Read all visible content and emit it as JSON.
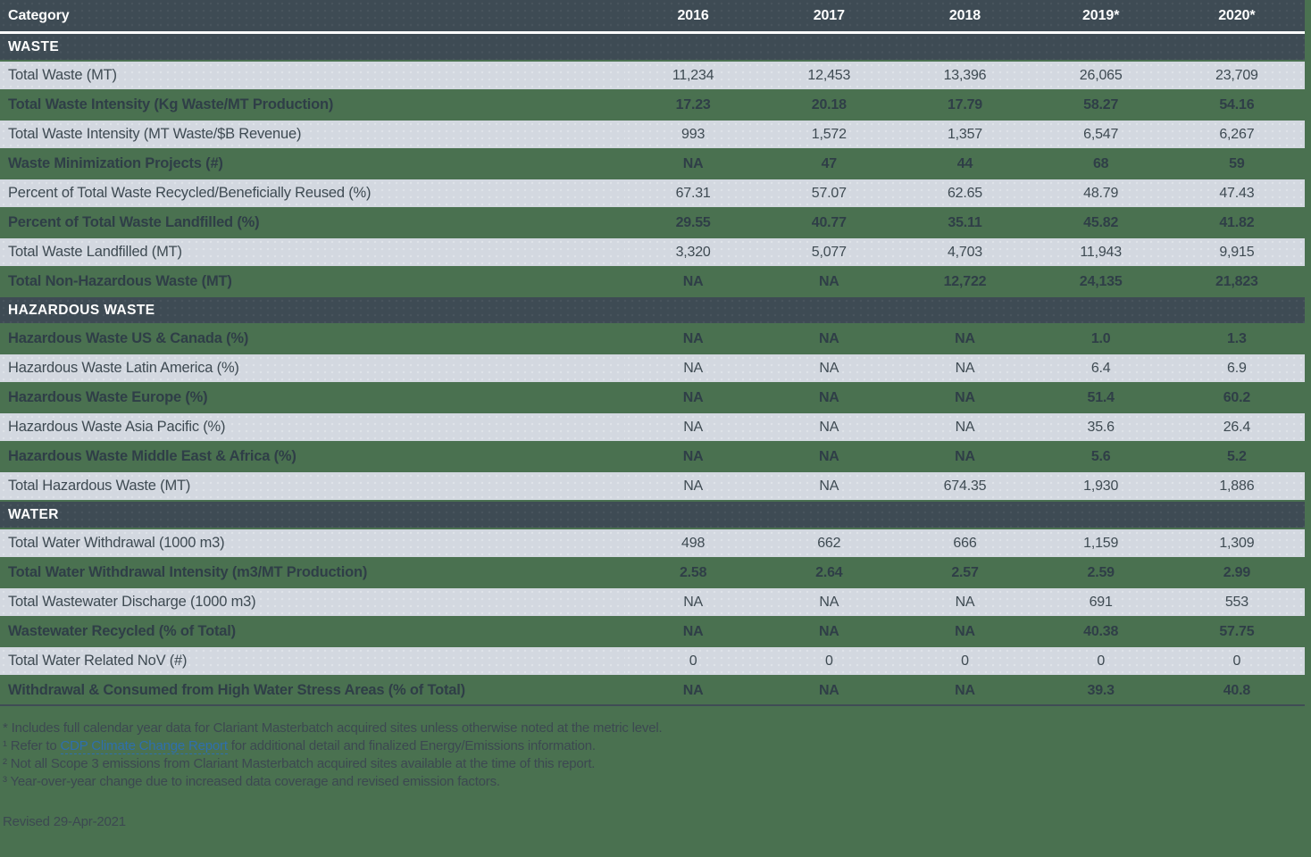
{
  "colors": {
    "page_background": "#4a7150",
    "band_dark": "#3e4b54",
    "row_light": "#d3d8e0",
    "row_text_dark": "#3d4a52",
    "band_text": "#ffffff",
    "link_blue": "#2e6fae"
  },
  "table": {
    "columns": [
      "Category",
      "2016",
      "2017",
      "2018",
      "2019*",
      "2020*"
    ],
    "sections": [
      {
        "title": "WASTE",
        "rows": [
          {
            "label": "Total Waste (MT)",
            "shade": "light",
            "values": [
              "11,234",
              "12,453",
              "13,396",
              "26,065",
              "23,709"
            ]
          },
          {
            "label": "Total Waste Intensity (Kg Waste/MT Production)",
            "shade": "green",
            "values": [
              "17.23",
              "20.18",
              "17.79",
              "58.27",
              "54.16"
            ]
          },
          {
            "label": "Total Waste Intensity (MT Waste/$B Revenue)",
            "shade": "light",
            "values": [
              "993",
              "1,572",
              "1,357",
              "6,547",
              "6,267"
            ]
          },
          {
            "label": "Waste Minimization Projects (#)",
            "shade": "green",
            "values": [
              "NA",
              "47",
              "44",
              "68",
              "59"
            ]
          },
          {
            "label": "Percent of Total Waste Recycled/Beneficially Reused (%)",
            "shade": "light",
            "values": [
              "67.31",
              "57.07",
              "62.65",
              "48.79",
              "47.43"
            ]
          },
          {
            "label": "Percent of Total Waste Landfilled (%)",
            "shade": "green",
            "values": [
              "29.55",
              "40.77",
              "35.11",
              "45.82",
              "41.82"
            ]
          },
          {
            "label": "Total Waste Landfilled (MT)",
            "shade": "light",
            "values": [
              "3,320",
              "5,077",
              "4,703",
              "11,943",
              "9,915"
            ]
          },
          {
            "label": "Total Non-Hazardous Waste (MT)",
            "shade": "green",
            "values": [
              "NA",
              "NA",
              "12,722",
              "24,135",
              "21,823"
            ]
          }
        ]
      },
      {
        "title": "HAZARDOUS WASTE",
        "rows": [
          {
            "label": "Hazardous Waste US & Canada (%)",
            "shade": "green",
            "values": [
              "NA",
              "NA",
              "NA",
              "1.0",
              "1.3"
            ]
          },
          {
            "label": "Hazardous Waste Latin America (%)",
            "shade": "light",
            "values": [
              "NA",
              "NA",
              "NA",
              "6.4",
              "6.9"
            ]
          },
          {
            "label": "Hazardous Waste Europe (%)",
            "shade": "green",
            "values": [
              "NA",
              "NA",
              "NA",
              "51.4",
              "60.2"
            ]
          },
          {
            "label": "Hazardous Waste Asia Pacific (%)",
            "shade": "light",
            "values": [
              "NA",
              "NA",
              "NA",
              "35.6",
              "26.4"
            ]
          },
          {
            "label": "Hazardous Waste Middle East & Africa (%)",
            "shade": "green",
            "values": [
              "NA",
              "NA",
              "NA",
              "5.6",
              "5.2"
            ]
          },
          {
            "label": "Total Hazardous Waste (MT)",
            "shade": "light",
            "values": [
              "NA",
              "NA",
              "674.35",
              "1,930",
              "1,886"
            ]
          }
        ]
      },
      {
        "title": "WATER",
        "rows": [
          {
            "label": "Total Water Withdrawal (1000 m3)",
            "shade": "light",
            "values": [
              "498",
              "662",
              "666",
              "1,159",
              "1,309"
            ]
          },
          {
            "label": "Total Water Withdrawal Intensity (m3/MT Production)",
            "shade": "green",
            "values": [
              "2.58",
              "2.64",
              "2.57",
              "2.59",
              "2.99"
            ]
          },
          {
            "label": "Total Wastewater Discharge (1000 m3)",
            "shade": "light",
            "values": [
              "NA",
              "NA",
              "NA",
              "691",
              "553"
            ]
          },
          {
            "label": "Wastewater Recycled (% of Total)",
            "shade": "green",
            "values": [
              "NA",
              "NA",
              "NA",
              "40.38",
              "57.75"
            ]
          },
          {
            "label": "Total Water Related NoV (#)",
            "shade": "light",
            "values": [
              "0",
              "0",
              "0",
              "0",
              "0"
            ]
          },
          {
            "label": "Withdrawal & Consumed from High Water Stress Areas (% of Total)",
            "shade": "green",
            "values": [
              "NA",
              "NA",
              "NA",
              "39.3",
              "40.8"
            ]
          }
        ]
      }
    ]
  },
  "footnotes": [
    {
      "text": "* Includes full calendar year data for Clariant Masterbatch acquired sites unless otherwise noted at the metric level."
    },
    {
      "pre": "¹ Refer to ",
      "link": "CDP Climate Change Report",
      "post": " for additional detail and finalized Energy/Emissions information."
    },
    {
      "text": "² Not all Scope 3 emissions from Clariant Masterbatch acquired sites available at the time of this report."
    },
    {
      "text": "³ Year-over-year change due to increased data coverage and revised emission factors."
    }
  ],
  "revised": "Revised 29-Apr-2021"
}
